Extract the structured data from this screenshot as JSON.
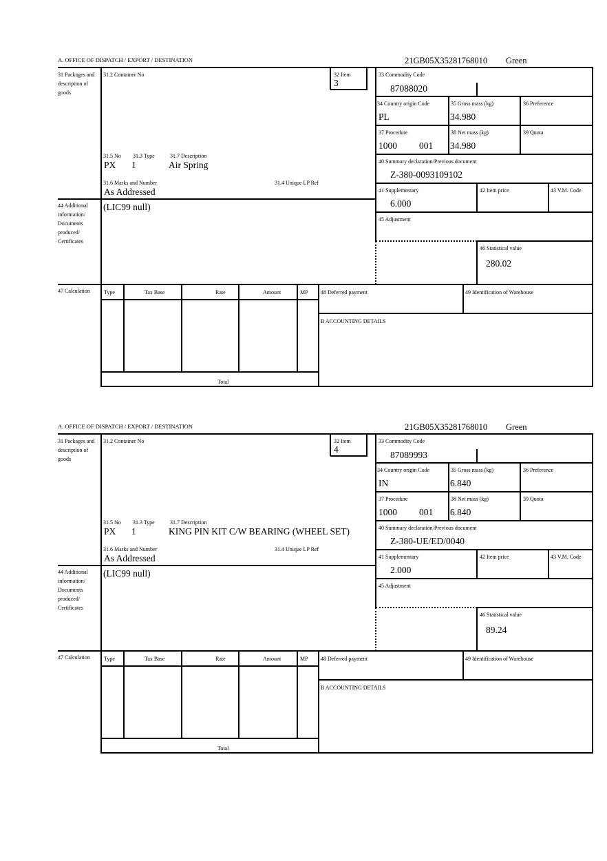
{
  "labels": {
    "office": "A.  OFFICE OF DISPATCH / EXPORT / DESTINATION",
    "packages": "31 Packages and description of goods",
    "container_no": "31.2 Container No",
    "item": "32 Item",
    "no": "31.5 No",
    "type": "31.3 Type",
    "description": "31.7 Description",
    "marks": "31.6 Marks and Number",
    "unique_lp_ref": "31.4 Unique LP Ref",
    "commodity_code": "33 Commodity Code",
    "country_origin": "34 Country origin Code",
    "gross_mass": "35 Gross mass (kg)",
    "preference": "36 Preference",
    "procedure": "37 Procedure",
    "net_mass": "38 Net mass (kg)",
    "quota": "39 Quota",
    "summary_declaration": "40 Summary declaration/Previous document",
    "supplementary": "41 Supplementary",
    "item_price": "42 Item price",
    "vm_code": "43 V.M. Code",
    "adjustment": "45 Adjustment",
    "statistical_value": "46 Statistical value",
    "additional_info": "44 Additional information/ Documents produced/ Certificates",
    "calculation": "47 Calculation",
    "calc_type": "Type",
    "calc_tax_base": "Tax Base",
    "calc_rate": "Rate",
    "calc_amount": "Amount",
    "calc_mp": "MP",
    "total": "Total",
    "deferred_payment": "48 Deferred payment",
    "warehouse_id": "49 Identification of Warehouse",
    "accounting_details": "B ACCOUNTING DETAILS"
  },
  "forms": [
    {
      "reference": "21GB05X35281768010",
      "status": "Green",
      "item": "3",
      "no": "PX",
      "type": "1",
      "description": "Air Spring",
      "marks": "As Addressed",
      "commodity_code": "87088020",
      "country_origin": "PL",
      "gross_mass": "34.980",
      "procedure": "1000",
      "procedure_additional": "001",
      "net_mass": "34.980",
      "summary_declaration": "Z-380-0093109102",
      "supplementary": "6.000",
      "statistical_value": "280.02",
      "additional_info": "(LIC99 null)"
    },
    {
      "reference": "21GB05X35281768010",
      "status": "Green",
      "item": "4",
      "no": "PX",
      "type": "1",
      "description": "KING PIN KIT C/W BEARING (WHEEL SET)",
      "marks": "As Addressed",
      "commodity_code": "87089993",
      "country_origin": "IN",
      "gross_mass": "6.840",
      "procedure": "1000",
      "procedure_additional": "001",
      "net_mass": "6.840",
      "summary_declaration": "Z-380-UE/ED/0040",
      "supplementary": "2.000",
      "statistical_value": "89.24",
      "additional_info": "(LIC99 null)"
    }
  ]
}
